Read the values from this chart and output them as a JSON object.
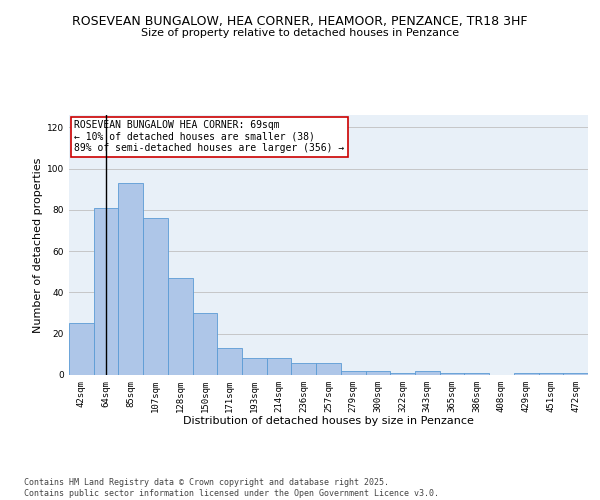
{
  "title1": "ROSEVEAN BUNGALOW, HEA CORNER, HEAMOOR, PENZANCE, TR18 3HF",
  "title2": "Size of property relative to detached houses in Penzance",
  "xlabel": "Distribution of detached houses by size in Penzance",
  "ylabel": "Number of detached properties",
  "categories": [
    "42sqm",
    "64sqm",
    "85sqm",
    "107sqm",
    "128sqm",
    "150sqm",
    "171sqm",
    "193sqm",
    "214sqm",
    "236sqm",
    "257sqm",
    "279sqm",
    "300sqm",
    "322sqm",
    "343sqm",
    "365sqm",
    "386sqm",
    "408sqm",
    "429sqm",
    "451sqm",
    "472sqm"
  ],
  "values": [
    25,
    81,
    93,
    76,
    47,
    30,
    13,
    8,
    8,
    6,
    6,
    2,
    2,
    1,
    2,
    1,
    1,
    0,
    1,
    1,
    1
  ],
  "bar_color": "#aec6e8",
  "bar_edge_color": "#5b9bd5",
  "vline_x": 1,
  "vline_color": "#000000",
  "annotation_text": "ROSEVEAN BUNGALOW HEA CORNER: 69sqm\n← 10% of detached houses are smaller (38)\n89% of semi-detached houses are larger (356) →",
  "annotation_box_color": "#ffffff",
  "annotation_box_edge_color": "#cc0000",
  "ylim": [
    0,
    126
  ],
  "yticks": [
    0,
    20,
    40,
    60,
    80,
    100,
    120
  ],
  "grid_color": "#c0c0c0",
  "background_color": "#e8f0f8",
  "footer_text": "Contains HM Land Registry data © Crown copyright and database right 2025.\nContains public sector information licensed under the Open Government Licence v3.0.",
  "title_fontsize": 9,
  "subtitle_fontsize": 8,
  "axis_label_fontsize": 8,
  "tick_fontsize": 6.5,
  "annotation_fontsize": 7,
  "footer_fontsize": 6
}
